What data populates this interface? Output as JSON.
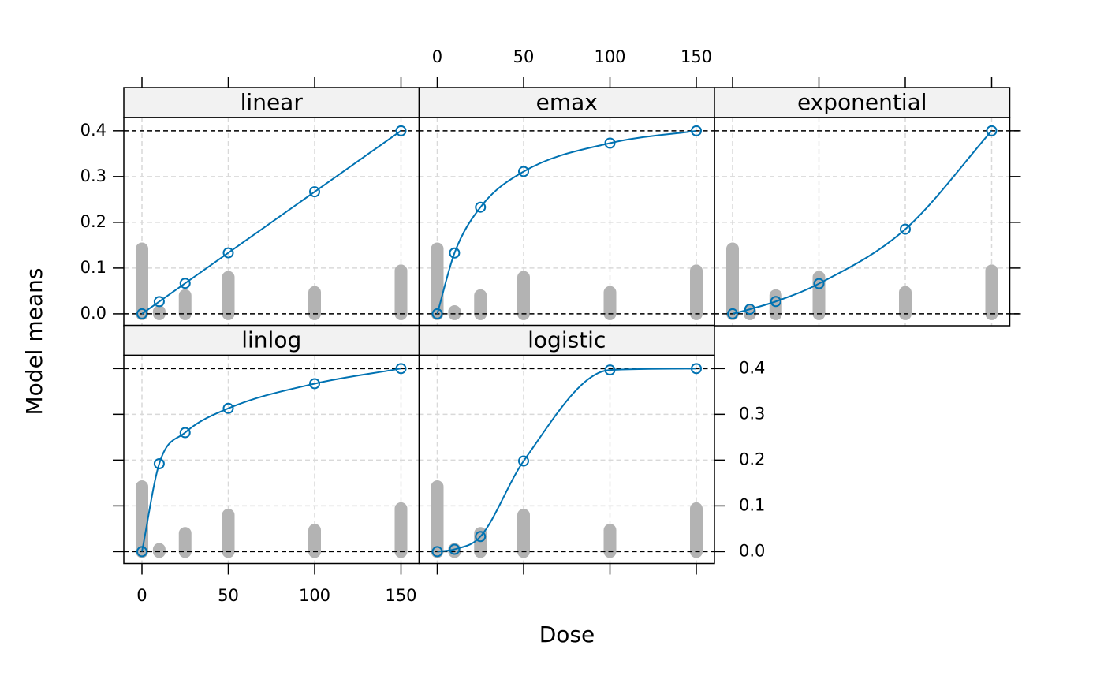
{
  "xlabel": "Dose",
  "ylabel": "Model means",
  "xlim": [
    -10.5,
    160.5
  ],
  "ylim": [
    -0.026,
    0.429
  ],
  "xticks": [
    0,
    50,
    100,
    150
  ],
  "yticks": [
    {
      "value": 0,
      "label": "0.0"
    },
    0.1,
    0.2,
    0.3,
    0.4
  ],
  "reference_lines": [
    0,
    0.4
  ],
  "grid": true,
  "chart_data": [
    {
      "type": "line",
      "title": "linear",
      "x": [
        0,
        10,
        25,
        50,
        100,
        150
      ],
      "values": [
        0,
        0.0267,
        0.0667,
        0.1333,
        0.2667,
        0.4
      ],
      "color": "#0072b2",
      "bars": [
        0.142,
        0.005,
        0.04,
        0.08,
        0.047,
        0.094
      ],
      "bar_color": "#b3b3b3"
    },
    {
      "type": "line",
      "title": "emax",
      "x": [
        0,
        10,
        25,
        50,
        100,
        150
      ],
      "values": [
        0,
        0.133,
        0.233,
        0.311,
        0.373,
        0.4
      ],
      "color": "#0072b2",
      "bars": [
        0.142,
        0.005,
        0.04,
        0.08,
        0.047,
        0.094
      ],
      "bar_color": "#b3b3b3"
    },
    {
      "type": "line",
      "title": "exponential",
      "x": [
        0,
        10,
        25,
        50,
        100,
        150
      ],
      "values": [
        0,
        0.01,
        0.027,
        0.066,
        0.185,
        0.4
      ],
      "color": "#0072b2",
      "bars": [
        0.142,
        0.005,
        0.04,
        0.08,
        0.047,
        0.094
      ],
      "bar_color": "#b3b3b3"
    },
    {
      "type": "line",
      "title": "linlog",
      "x": [
        0,
        10,
        25,
        50,
        100,
        150
      ],
      "values": [
        0,
        0.192,
        0.26,
        0.313,
        0.367,
        0.4
      ],
      "color": "#0072b2",
      "bars": [
        0.142,
        0.005,
        0.04,
        0.08,
        0.047,
        0.094
      ],
      "bar_color": "#b3b3b3"
    },
    {
      "type": "line",
      "title": "logistic",
      "x": [
        0,
        10,
        25,
        50,
        100,
        150
      ],
      "values": [
        0,
        0.005,
        0.033,
        0.198,
        0.397,
        0.4
      ],
      "color": "#0072b2",
      "bars": [
        0.142,
        0.005,
        0.04,
        0.08,
        0.047,
        0.094
      ],
      "bar_color": "#b3b3b3"
    }
  ]
}
